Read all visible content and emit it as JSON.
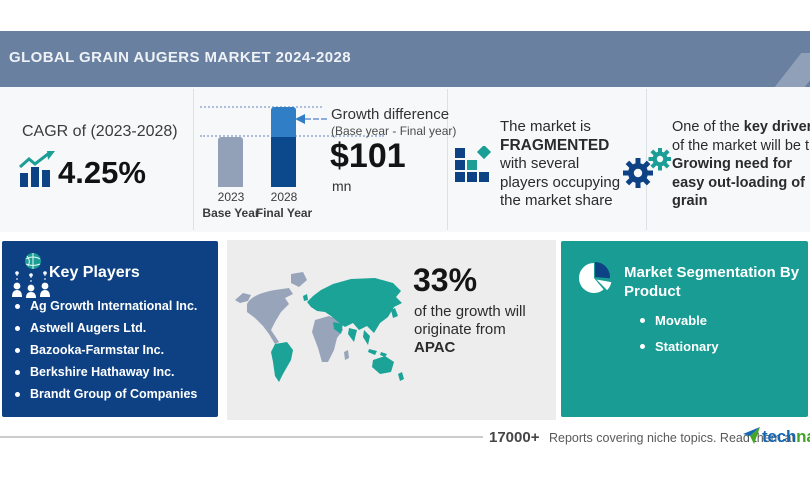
{
  "colors": {
    "header_bg": "#6a80a0",
    "dark_blue": "#0d4284",
    "mid_blue": "#2f7ec6",
    "bar_gray": "#92a1b8",
    "teal": "#1b9e95",
    "panel_gray": "#ededee",
    "map_gray": "#97a4b9",
    "map_teal": "#1aa396",
    "logo_blue": "#1467b3",
    "logo_green": "#44a427"
  },
  "header": {
    "title": "GLOBAL GRAIN AUGERS MARKET 2024-2028"
  },
  "cagr": {
    "label": "CAGR of (2023-2028)",
    "value": "4.25%"
  },
  "growth": {
    "annotation_title": "Growth difference",
    "annotation_sub": "(Base year - Final year)",
    "amount": "$101",
    "unit": "mn",
    "bars": [
      {
        "year": "2023",
        "label": "Base Year"
      },
      {
        "year": "2028",
        "label": "Final Year"
      }
    ]
  },
  "fragmented": {
    "pre": "The market is",
    "emphasis": "FRAGMENTED",
    "post_lines": [
      "with several",
      "players occupying",
      "the market share"
    ]
  },
  "driver": {
    "lead": "One of the ",
    "lead_bold": "key drivers",
    "line2": "of the market will be the",
    "bold_lines": [
      "Growing need for",
      "easy out-loading of",
      "grain"
    ]
  },
  "key_players": {
    "title": "Key Players",
    "items": [
      "Ag Growth International Inc.",
      "Astwell Augers Ltd.",
      "Bazooka-Farmstar Inc.",
      "Berkshire Hathaway Inc.",
      "Brandt Group of Companies"
    ]
  },
  "regional": {
    "value": "33%",
    "lines": [
      "of the growth will",
      "originate from"
    ],
    "region": "APAC"
  },
  "segmentation": {
    "title_lines": [
      "Market Segmentation By",
      "Product"
    ],
    "items": [
      "Movable",
      "Stationary"
    ]
  },
  "footer": {
    "count": "17000+",
    "text": "Reports covering niche topics. Read them at",
    "brand": {
      "part1": "tech",
      "part2": "navio"
    }
  },
  "chart_data": {
    "type": "bar",
    "title": "Growth difference (Base year - Final year)",
    "categories": [
      "2023 Base Year",
      "2028 Final Year"
    ],
    "values_relative": [
      0.63,
      1.0
    ],
    "growth_difference_usd_mn": 101,
    "cagr_2023_2028_pct": 4.25,
    "apac_growth_share_pct": 33,
    "ylabel": "",
    "xlabel": "",
    "grid": "dotted reference lines at bar tops",
    "legend": "none"
  }
}
